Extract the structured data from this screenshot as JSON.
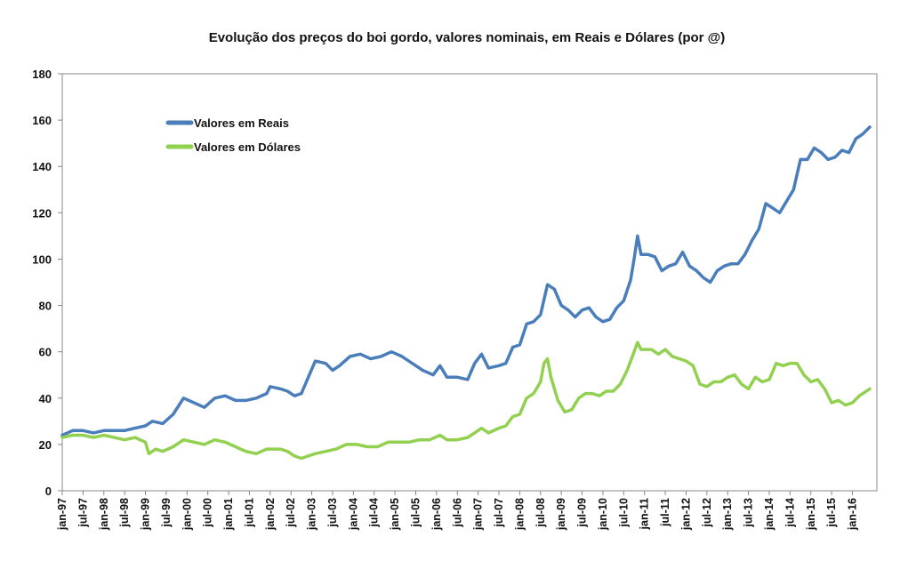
{
  "chart_data": {
    "type": "line",
    "title": "Evolução dos preços do boi gordo, valores nominais, em Reais e Dólares (por @)",
    "xlabel": "",
    "ylabel": "",
    "ylim": [
      0,
      180
    ],
    "yticks": [
      0,
      20,
      40,
      60,
      80,
      100,
      120,
      140,
      160,
      180
    ],
    "xlim": [
      "1997-01",
      "2016-06"
    ],
    "xtick_labels": [
      "jan-97",
      "jul-97",
      "jan-98",
      "jul-98",
      "jan-99",
      "jul-99",
      "jan-00",
      "jul-00",
      "jan-01",
      "jul-01",
      "jan-02",
      "jul-02",
      "jan-03",
      "jul-03",
      "jan-04",
      "jul-04",
      "jan-05",
      "jul-05",
      "jan-06",
      "jul-06",
      "jan-07",
      "jul-07",
      "jan-08",
      "jul-08",
      "jan-09",
      "jul-09",
      "jan-10",
      "jul-10",
      "jan-11",
      "jul-11",
      "jan-12",
      "jul-12",
      "jan-13",
      "jul-13",
      "jan-14",
      "jul-14",
      "jan-15",
      "jul-15",
      "jan-16"
    ],
    "grid": false,
    "legend_position": "top-left",
    "series": [
      {
        "name": "Valores em Reais",
        "color": "#4a7ebb",
        "points": [
          [
            "1997-01",
            24
          ],
          [
            "1997-04",
            26
          ],
          [
            "1997-07",
            26
          ],
          [
            "1997-10",
            25
          ],
          [
            "1998-01",
            26
          ],
          [
            "1998-04",
            26
          ],
          [
            "1998-07",
            26
          ],
          [
            "1998-10",
            27
          ],
          [
            "1999-01",
            28
          ],
          [
            "1999-03",
            30
          ],
          [
            "1999-06",
            29
          ],
          [
            "1999-09",
            33
          ],
          [
            "1999-12",
            40
          ],
          [
            "2000-03",
            38
          ],
          [
            "2000-06",
            36
          ],
          [
            "2000-09",
            40
          ],
          [
            "2000-12",
            41
          ],
          [
            "2001-03",
            39
          ],
          [
            "2001-06",
            39
          ],
          [
            "2001-09",
            40
          ],
          [
            "2001-12",
            42
          ],
          [
            "2002-01",
            45
          ],
          [
            "2002-04",
            44
          ],
          [
            "2002-06",
            43
          ],
          [
            "2002-08",
            41
          ],
          [
            "2002-10",
            42
          ],
          [
            "2002-12",
            49
          ],
          [
            "2003-02",
            56
          ],
          [
            "2003-05",
            55
          ],
          [
            "2003-07",
            52
          ],
          [
            "2003-09",
            54
          ],
          [
            "2003-12",
            58
          ],
          [
            "2004-03",
            59
          ],
          [
            "2004-06",
            57
          ],
          [
            "2004-09",
            58
          ],
          [
            "2004-12",
            60
          ],
          [
            "2005-03",
            58
          ],
          [
            "2005-06",
            55
          ],
          [
            "2005-09",
            52
          ],
          [
            "2005-12",
            50
          ],
          [
            "2006-02",
            54
          ],
          [
            "2006-04",
            49
          ],
          [
            "2006-07",
            49
          ],
          [
            "2006-10",
            48
          ],
          [
            "2006-12",
            55
          ],
          [
            "2007-02",
            59
          ],
          [
            "2007-04",
            53
          ],
          [
            "2007-07",
            54
          ],
          [
            "2007-09",
            55
          ],
          [
            "2007-11",
            62
          ],
          [
            "2008-01",
            63
          ],
          [
            "2008-03",
            72
          ],
          [
            "2008-05",
            73
          ],
          [
            "2008-07",
            76
          ],
          [
            "2008-09",
            89
          ],
          [
            "2008-11",
            87
          ],
          [
            "2009-01",
            80
          ],
          [
            "2009-03",
            78
          ],
          [
            "2009-05",
            75
          ],
          [
            "2009-07",
            78
          ],
          [
            "2009-09",
            79
          ],
          [
            "2009-11",
            75
          ],
          [
            "2010-01",
            73
          ],
          [
            "2010-03",
            74
          ],
          [
            "2010-05",
            79
          ],
          [
            "2010-07",
            82
          ],
          [
            "2010-09",
            91
          ],
          [
            "2010-10",
            100
          ],
          [
            "2010-11",
            110
          ],
          [
            "2010-12",
            102
          ],
          [
            "2011-02",
            102
          ],
          [
            "2011-04",
            101
          ],
          [
            "2011-06",
            95
          ],
          [
            "2011-08",
            97
          ],
          [
            "2011-10",
            98
          ],
          [
            "2011-12",
            103
          ],
          [
            "2012-02",
            97
          ],
          [
            "2012-04",
            95
          ],
          [
            "2012-06",
            92
          ],
          [
            "2012-08",
            90
          ],
          [
            "2012-10",
            95
          ],
          [
            "2012-12",
            97
          ],
          [
            "2013-02",
            98
          ],
          [
            "2013-04",
            98
          ],
          [
            "2013-06",
            102
          ],
          [
            "2013-08",
            108
          ],
          [
            "2013-10",
            113
          ],
          [
            "2013-12",
            124
          ],
          [
            "2014-02",
            122
          ],
          [
            "2014-04",
            120
          ],
          [
            "2014-06",
            125
          ],
          [
            "2014-08",
            130
          ],
          [
            "2014-10",
            143
          ],
          [
            "2014-12",
            143
          ],
          [
            "2015-02",
            148
          ],
          [
            "2015-04",
            146
          ],
          [
            "2015-06",
            143
          ],
          [
            "2015-08",
            144
          ],
          [
            "2015-10",
            147
          ],
          [
            "2015-12",
            146
          ],
          [
            "2016-02",
            152
          ],
          [
            "2016-04",
            154
          ],
          [
            "2016-06",
            157
          ]
        ]
      },
      {
        "name": "Valores em Dólares",
        "color": "#92d050",
        "points": [
          [
            "1997-01",
            23
          ],
          [
            "1997-04",
            24
          ],
          [
            "1997-07",
            24
          ],
          [
            "1997-10",
            23
          ],
          [
            "1998-01",
            24
          ],
          [
            "1998-04",
            23
          ],
          [
            "1998-07",
            22
          ],
          [
            "1998-10",
            23
          ],
          [
            "1999-01",
            21
          ],
          [
            "1999-02",
            16
          ],
          [
            "1999-04",
            18
          ],
          [
            "1999-06",
            17
          ],
          [
            "1999-09",
            19
          ],
          [
            "1999-12",
            22
          ],
          [
            "2000-03",
            21
          ],
          [
            "2000-06",
            20
          ],
          [
            "2000-09",
            22
          ],
          [
            "2000-12",
            21
          ],
          [
            "2001-03",
            19
          ],
          [
            "2001-06",
            17
          ],
          [
            "2001-09",
            16
          ],
          [
            "2001-12",
            18
          ],
          [
            "2002-02",
            18
          ],
          [
            "2002-04",
            18
          ],
          [
            "2002-06",
            17
          ],
          [
            "2002-08",
            15
          ],
          [
            "2002-10",
            14
          ],
          [
            "2002-12",
            15
          ],
          [
            "2003-02",
            16
          ],
          [
            "2003-05",
            17
          ],
          [
            "2003-08",
            18
          ],
          [
            "2003-11",
            20
          ],
          [
            "2004-02",
            20
          ],
          [
            "2004-05",
            19
          ],
          [
            "2004-08",
            19
          ],
          [
            "2004-11",
            21
          ],
          [
            "2005-02",
            21
          ],
          [
            "2005-05",
            21
          ],
          [
            "2005-08",
            22
          ],
          [
            "2005-11",
            22
          ],
          [
            "2006-02",
            24
          ],
          [
            "2006-04",
            22
          ],
          [
            "2006-07",
            22
          ],
          [
            "2006-10",
            23
          ],
          [
            "2006-12",
            25
          ],
          [
            "2007-02",
            27
          ],
          [
            "2007-04",
            25
          ],
          [
            "2007-07",
            27
          ],
          [
            "2007-09",
            28
          ],
          [
            "2007-11",
            32
          ],
          [
            "2008-01",
            33
          ],
          [
            "2008-03",
            40
          ],
          [
            "2008-05",
            42
          ],
          [
            "2008-07",
            47
          ],
          [
            "2008-08",
            55
          ],
          [
            "2008-09",
            57
          ],
          [
            "2008-10",
            49
          ],
          [
            "2008-12",
            39
          ],
          [
            "2009-02",
            34
          ],
          [
            "2009-04",
            35
          ],
          [
            "2009-06",
            40
          ],
          [
            "2009-08",
            42
          ],
          [
            "2009-10",
            42
          ],
          [
            "2009-12",
            41
          ],
          [
            "2010-02",
            43
          ],
          [
            "2010-04",
            43
          ],
          [
            "2010-06",
            46
          ],
          [
            "2010-08",
            52
          ],
          [
            "2010-10",
            60
          ],
          [
            "2010-11",
            64
          ],
          [
            "2010-12",
            61
          ],
          [
            "2011-03",
            61
          ],
          [
            "2011-05",
            59
          ],
          [
            "2011-07",
            61
          ],
          [
            "2011-09",
            58
          ],
          [
            "2011-11",
            57
          ],
          [
            "2012-01",
            56
          ],
          [
            "2012-03",
            54
          ],
          [
            "2012-05",
            46
          ],
          [
            "2012-07",
            45
          ],
          [
            "2012-09",
            47
          ],
          [
            "2012-11",
            47
          ],
          [
            "2013-01",
            49
          ],
          [
            "2013-03",
            50
          ],
          [
            "2013-05",
            46
          ],
          [
            "2013-07",
            44
          ],
          [
            "2013-09",
            49
          ],
          [
            "2013-11",
            47
          ],
          [
            "2014-01",
            48
          ],
          [
            "2014-03",
            55
          ],
          [
            "2014-05",
            54
          ],
          [
            "2014-07",
            55
          ],
          [
            "2014-09",
            55
          ],
          [
            "2014-11",
            50
          ],
          [
            "2015-01",
            47
          ],
          [
            "2015-03",
            48
          ],
          [
            "2015-05",
            44
          ],
          [
            "2015-07",
            38
          ],
          [
            "2015-09",
            39
          ],
          [
            "2015-11",
            37
          ],
          [
            "2016-01",
            38
          ],
          [
            "2016-03",
            41
          ],
          [
            "2016-06",
            44
          ]
        ]
      }
    ]
  }
}
